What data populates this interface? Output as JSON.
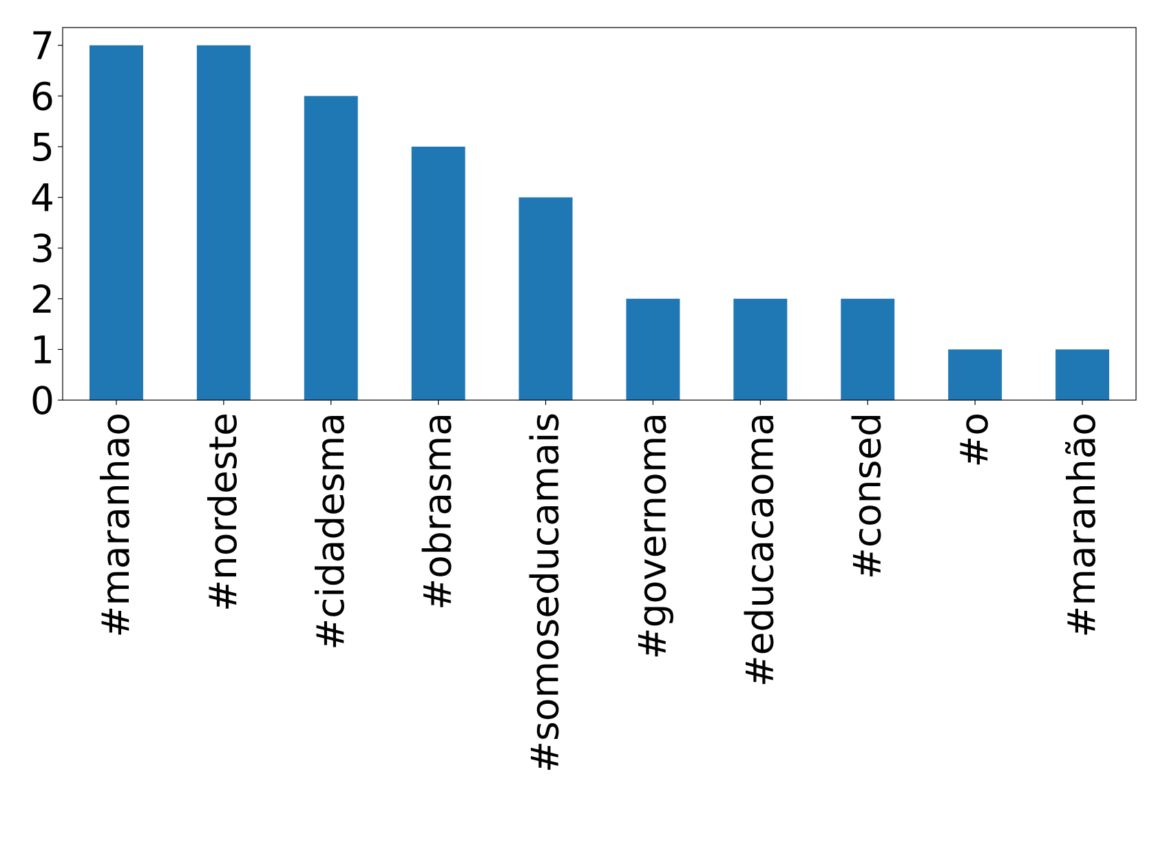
{
  "chart_data": {
    "type": "bar",
    "title": "",
    "xlabel": "",
    "ylabel": "",
    "categories": [
      "#maranhao",
      "#nordeste",
      "#cidadesma",
      "#obrasma",
      "#somoseducamais",
      "#governoma",
      "#educacaoma",
      "#consed",
      "#o",
      "#maranhão"
    ],
    "values": [
      7,
      7,
      6,
      5,
      4,
      2,
      2,
      2,
      1,
      1
    ],
    "ylim": [
      0,
      7.35
    ],
    "yticks": [
      0,
      1,
      2,
      3,
      4,
      5,
      6,
      7
    ],
    "bar_color": "#1f77b4",
    "grid": false,
    "legend": false
  }
}
